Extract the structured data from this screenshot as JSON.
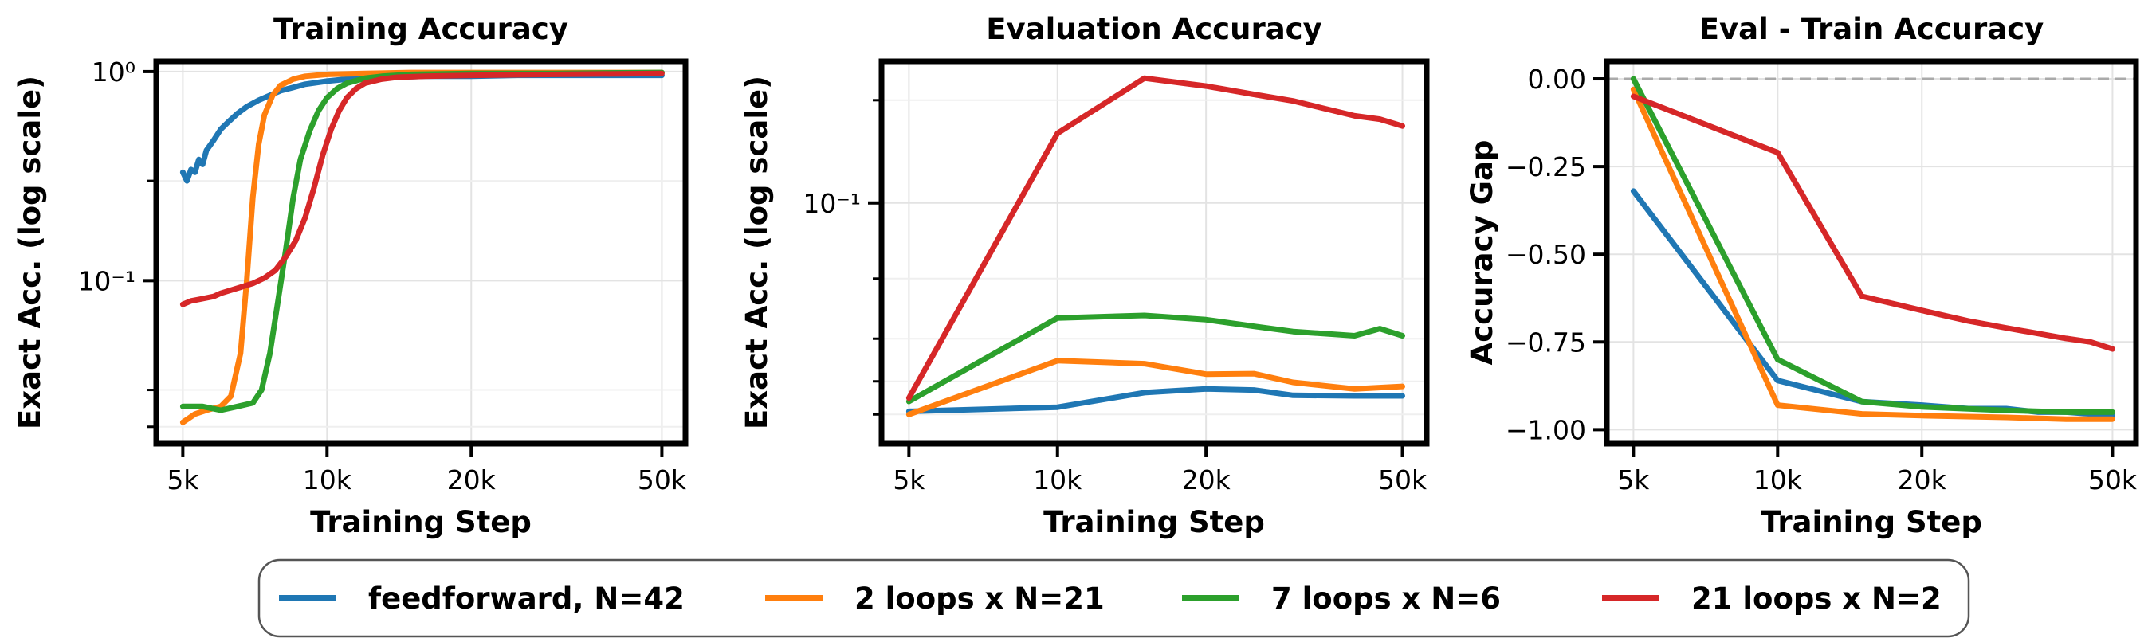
{
  "legend": {
    "placement": "bottom-center",
    "entries": [
      {
        "label": "feedforward, N=42",
        "color": "#1f77b4"
      },
      {
        "label": "2 loops x N=21",
        "color": "#ff7f0e"
      },
      {
        "label": "7 loops x N=6",
        "color": "#2ca02c"
      },
      {
        "label": "21 loops x N=2",
        "color": "#d62728"
      }
    ]
  },
  "chart_data": [
    {
      "type": "line",
      "title": "Training Accuracy",
      "xlabel": "Training Step",
      "ylabel": "Exact Acc. (log scale)",
      "xscale": "log",
      "yscale": "log",
      "xlim": [
        4400,
        56000
      ],
      "ylim": [
        0.0166,
        1.12
      ],
      "grid": true,
      "xticks": [
        {
          "v": 5000,
          "label": "5k"
        },
        {
          "v": 10000,
          "label": "10k"
        },
        {
          "v": 20000,
          "label": "20k"
        },
        {
          "v": 50000,
          "label": "50k"
        }
      ],
      "yticks": [
        {
          "v": 1,
          "label": "10⁰"
        },
        {
          "v": 0.1,
          "label": "10⁻¹"
        }
      ],
      "yminor": [
        0.02,
        0.03,
        0.3
      ],
      "series": [
        {
          "name": "feedforward, N=42",
          "color": "#1f77b4",
          "x": [
            5000,
            5100,
            5200,
            5300,
            5400,
            5500,
            5600,
            5800,
            6000,
            6200,
            6500,
            6800,
            7200,
            7600,
            8000,
            8500,
            9000,
            10000,
            11000,
            12000,
            14000,
            16000,
            20000,
            25000,
            30000,
            40000,
            50000
          ],
          "y": [
            0.33,
            0.3,
            0.34,
            0.33,
            0.38,
            0.36,
            0.42,
            0.47,
            0.53,
            0.57,
            0.63,
            0.68,
            0.73,
            0.77,
            0.81,
            0.84,
            0.87,
            0.9,
            0.92,
            0.93,
            0.94,
            0.95,
            0.95,
            0.96,
            0.96,
            0.96,
            0.96
          ]
        },
        {
          "name": "2 loops x N=21",
          "color": "#ff7f0e",
          "x": [
            5000,
            5300,
            5600,
            6000,
            6300,
            6600,
            6800,
            7000,
            7200,
            7400,
            7700,
            8000,
            8500,
            9000,
            10000,
            12000,
            15000,
            20000,
            30000,
            50000
          ],
          "y": [
            0.021,
            0.023,
            0.024,
            0.025,
            0.028,
            0.045,
            0.1,
            0.25,
            0.45,
            0.62,
            0.77,
            0.86,
            0.92,
            0.95,
            0.97,
            0.98,
            0.99,
            0.99,
            0.99,
            0.99
          ]
        },
        {
          "name": "7 loops x N=6",
          "color": "#2ca02c",
          "x": [
            5000,
            5500,
            6000,
            6500,
            7000,
            7300,
            7600,
            7900,
            8200,
            8500,
            8800,
            9200,
            9600,
            10000,
            10500,
            11000,
            12000,
            13000,
            15000,
            20000,
            30000,
            50000
          ],
          "y": [
            0.025,
            0.025,
            0.024,
            0.025,
            0.026,
            0.03,
            0.045,
            0.08,
            0.14,
            0.25,
            0.38,
            0.52,
            0.65,
            0.75,
            0.83,
            0.88,
            0.93,
            0.95,
            0.97,
            0.98,
            0.98,
            0.99
          ]
        },
        {
          "name": "21 loops x N=2",
          "color": "#d62728",
          "x": [
            5000,
            5200,
            5500,
            5800,
            6000,
            6300,
            6600,
            7000,
            7400,
            7800,
            8200,
            8600,
            9000,
            9400,
            9800,
            10200,
            10600,
            11000,
            11500,
            12000,
            13000,
            14000,
            16000,
            20000,
            30000,
            50000
          ],
          "y": [
            0.077,
            0.08,
            0.082,
            0.084,
            0.087,
            0.09,
            0.093,
            0.097,
            0.103,
            0.112,
            0.13,
            0.155,
            0.2,
            0.28,
            0.4,
            0.53,
            0.65,
            0.75,
            0.83,
            0.88,
            0.92,
            0.94,
            0.95,
            0.96,
            0.97,
            0.98
          ]
        }
      ]
    },
    {
      "type": "line",
      "title": "Evaluation Accuracy",
      "xlabel": "Training Step",
      "ylabel": "Exact Acc. (log scale)",
      "xscale": "log",
      "yscale": "log",
      "xlim": [
        4400,
        56000
      ],
      "ylim": [
        0.0197,
        0.26
      ],
      "grid": true,
      "xticks": [
        {
          "v": 5000,
          "label": "5k"
        },
        {
          "v": 10000,
          "label": "10k"
        },
        {
          "v": 20000,
          "label": "20k"
        },
        {
          "v": 50000,
          "label": "50k"
        }
      ],
      "yticks": [
        {
          "v": 0.1,
          "label": "10⁻¹"
        }
      ],
      "yminor": [
        0.024,
        0.03,
        0.04,
        0.06,
        0.2
      ],
      "series": [
        {
          "name": "feedforward, N=42",
          "color": "#1f77b4",
          "x": [
            5000,
            10000,
            15000,
            20000,
            25000,
            30000,
            40000,
            50000
          ],
          "y": [
            0.0245,
            0.0252,
            0.0278,
            0.0285,
            0.0283,
            0.0273,
            0.0272,
            0.0272
          ]
        },
        {
          "name": "2 loops x N=21",
          "color": "#ff7f0e",
          "x": [
            5000,
            10000,
            15000,
            20000,
            25000,
            30000,
            40000,
            50000
          ],
          "y": [
            0.024,
            0.0345,
            0.0338,
            0.0315,
            0.0316,
            0.0298,
            0.0285,
            0.029
          ]
        },
        {
          "name": "7 loops x N=6",
          "color": "#2ca02c",
          "x": [
            5000,
            10000,
            15000,
            20000,
            25000,
            30000,
            40000,
            45000,
            50000
          ],
          "y": [
            0.0262,
            0.046,
            0.0468,
            0.0455,
            0.0435,
            0.042,
            0.0408,
            0.0428,
            0.0408
          ]
        },
        {
          "name": "21 loops x N=2",
          "color": "#d62728",
          "x": [
            5000,
            10000,
            15000,
            20000,
            25000,
            30000,
            40000,
            45000,
            50000
          ],
          "y": [
            0.0268,
            0.16,
            0.232,
            0.22,
            0.208,
            0.199,
            0.18,
            0.176,
            0.168
          ]
        }
      ]
    },
    {
      "type": "line",
      "title": "Eval - Train Accuracy",
      "xlabel": "Training Step",
      "ylabel": "Accuracy Gap",
      "xscale": "log",
      "yscale": "linear",
      "xlim": [
        4400,
        56000
      ],
      "ylim": [
        -1.04,
        0.05
      ],
      "grid": true,
      "reference_line": {
        "y": 0,
        "style": "dashed",
        "color": "#aaaaaa"
      },
      "xticks": [
        {
          "v": 5000,
          "label": "5k"
        },
        {
          "v": 10000,
          "label": "10k"
        },
        {
          "v": 20000,
          "label": "20k"
        },
        {
          "v": 50000,
          "label": "50k"
        }
      ],
      "yticks": [
        {
          "v": 0,
          "label": "0.00"
        },
        {
          "v": -0.25,
          "label": "−0.25"
        },
        {
          "v": -0.5,
          "label": "−0.50"
        },
        {
          "v": -0.75,
          "label": "−0.75"
        },
        {
          "v": -1,
          "label": "−1.00"
        }
      ],
      "yminor": [],
      "series": [
        {
          "name": "feedforward, N=42",
          "color": "#1f77b4",
          "x": [
            5000,
            10000,
            15000,
            20000,
            25000,
            30000,
            35000,
            40000,
            50000
          ],
          "y": [
            -0.32,
            -0.86,
            -0.92,
            -0.93,
            -0.94,
            -0.94,
            -0.95,
            -0.95,
            -0.96
          ]
        },
        {
          "name": "2 loops x N=21",
          "color": "#ff7f0e",
          "x": [
            5000,
            10000,
            15000,
            20000,
            30000,
            40000,
            50000
          ],
          "y": [
            -0.03,
            -0.93,
            -0.955,
            -0.96,
            -0.965,
            -0.97,
            -0.97
          ]
        },
        {
          "name": "7 loops x N=6",
          "color": "#2ca02c",
          "x": [
            5000,
            10000,
            15000,
            20000,
            30000,
            40000,
            50000
          ],
          "y": [
            0.0,
            -0.8,
            -0.92,
            -0.935,
            -0.945,
            -0.95,
            -0.95
          ]
        },
        {
          "name": "21 loops x N=2",
          "color": "#d62728",
          "x": [
            5000,
            10000,
            15000,
            20000,
            25000,
            30000,
            40000,
            45000,
            50000
          ],
          "y": [
            -0.05,
            -0.21,
            -0.62,
            -0.66,
            -0.69,
            -0.71,
            -0.74,
            -0.75,
            -0.77
          ]
        }
      ]
    }
  ]
}
